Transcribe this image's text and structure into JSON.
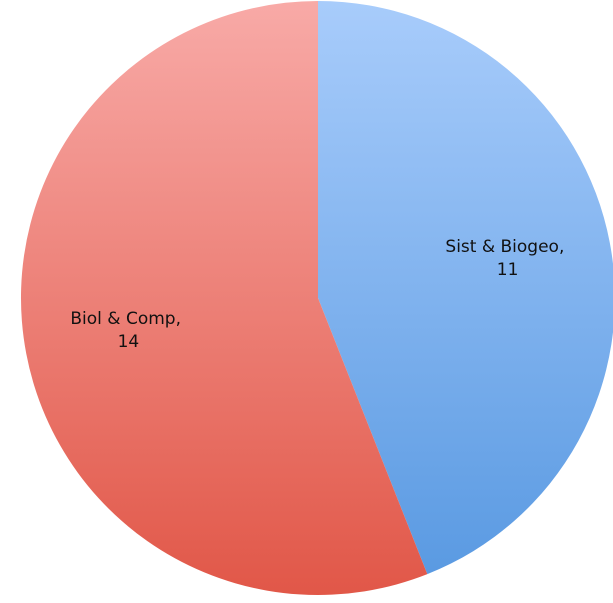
{
  "chart_data": {
    "type": "pie",
    "title": "",
    "slices": [
      {
        "label": "Sist & Biogeo",
        "value": 11,
        "label_line1": "Sist & Biogeo,",
        "label_line2": "11",
        "color_light": "#a8ccfb",
        "color_dark": "#5a9ae2"
      },
      {
        "label": "Biol & Comp",
        "value": 14,
        "label_line1": "Biol & Comp,",
        "label_line2": "14",
        "color_light": "#f8aaa7",
        "color_dark": "#e15748"
      }
    ],
    "start_angle_deg": 0,
    "direction": "clockwise",
    "legend": "none"
  }
}
